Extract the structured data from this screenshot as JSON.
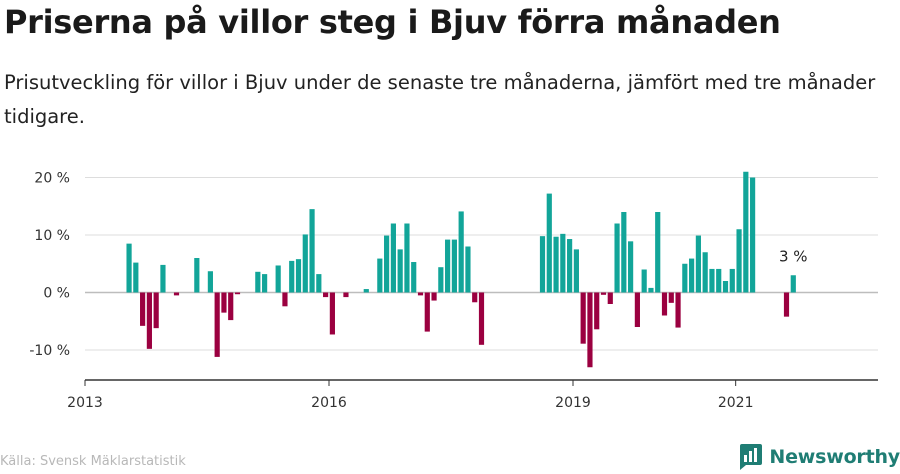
{
  "header": {
    "title": "Priserna på villor steg i Bjuv förra månaden",
    "subtitle": "Prisutveckling för villor i Bjuv under de senaste tre månaderna, jämfört med tre månader tidigare."
  },
  "footer": {
    "source": "Källa: Svensk Mäklarstatistik",
    "brand": "Newsworthy"
  },
  "colors": {
    "positive": "#12a599",
    "negative": "#9b0040",
    "grid": "#dddddd",
    "axis": "#333333",
    "brand": "#1f7d74"
  },
  "chart_data": {
    "type": "bar",
    "title": "",
    "xlabel": "",
    "ylabel": "",
    "ylim": [
      -15,
      22
    ],
    "yticks": [
      -10,
      0,
      10,
      20
    ],
    "ytick_labels": [
      "-10 %",
      "0 %",
      "10 %",
      "20 %"
    ],
    "xlim": [
      "2013-01",
      "2022-10"
    ],
    "xtick_labels": [
      {
        "x": "2013-01",
        "label": "2013"
      },
      {
        "x": "2016-01",
        "label": "2016"
      },
      {
        "x": "2019-01",
        "label": "2019"
      },
      {
        "x": "2021-01",
        "label": "2021"
      }
    ],
    "grid": true,
    "annotation": {
      "x": "2021-09",
      "label": "3 %"
    },
    "series": [
      {
        "x": [
          "2013-07",
          "2013-08",
          "2013-09",
          "2013-10",
          "2013-11",
          "2013-12",
          "2014-02",
          "2014-05",
          "2014-07",
          "2014-08",
          "2014-09",
          "2014-10",
          "2014-11",
          "2015-02",
          "2015-03",
          "2015-05",
          "2015-06",
          "2015-07",
          "2015-08",
          "2015-09",
          "2015-10",
          "2015-11",
          "2015-12",
          "2016-01",
          "2016-03",
          "2016-06",
          "2016-08",
          "2016-09",
          "2016-10",
          "2016-11",
          "2016-12",
          "2017-01",
          "2017-02",
          "2017-03",
          "2017-04",
          "2017-05",
          "2017-06",
          "2017-07",
          "2017-08",
          "2017-09",
          "2017-10",
          "2017-11",
          "2018-08",
          "2018-09",
          "2018-10",
          "2018-11",
          "2018-12",
          "2019-01",
          "2019-02",
          "2019-03",
          "2019-04",
          "2019-05",
          "2019-06",
          "2019-07",
          "2019-08",
          "2019-09",
          "2019-10",
          "2019-11",
          "2019-12",
          "2020-01",
          "2020-02",
          "2020-03",
          "2020-04",
          "2020-05",
          "2020-06",
          "2020-07",
          "2020-08",
          "2020-09",
          "2020-10",
          "2020-11",
          "2020-12",
          "2021-01",
          "2021-02",
          "2021-03",
          "2021-08",
          "2021-09"
        ],
        "values": [
          8.5,
          5.2,
          -5.8,
          -9.8,
          -6.2,
          4.8,
          -0.5,
          6.0,
          3.7,
          -11.2,
          -3.5,
          -4.8,
          -0.3,
          3.6,
          3.2,
          4.7,
          -2.4,
          5.5,
          5.8,
          10.1,
          14.5,
          3.2,
          -0.8,
          -7.3,
          -0.8,
          0.6,
          5.9,
          9.9,
          12.0,
          7.5,
          12.0,
          5.3,
          -0.5,
          -6.8,
          -1.4,
          4.4,
          9.2,
          9.2,
          14.1,
          8.0,
          -1.7,
          -9.1,
          9.8,
          17.2,
          9.7,
          10.2,
          9.3,
          7.5,
          -8.9,
          -13.0,
          -6.4,
          -0.4,
          -2.0,
          12.0,
          14.0,
          8.9,
          -6.0,
          4.0,
          0.8,
          14.0,
          -4.0,
          -1.8,
          -6.1,
          5.0,
          5.9,
          9.9,
          7.0,
          4.1,
          4.1,
          2.0,
          4.1,
          11.0,
          21.0,
          20.0,
          -4.2,
          3.0
        ]
      }
    ]
  }
}
